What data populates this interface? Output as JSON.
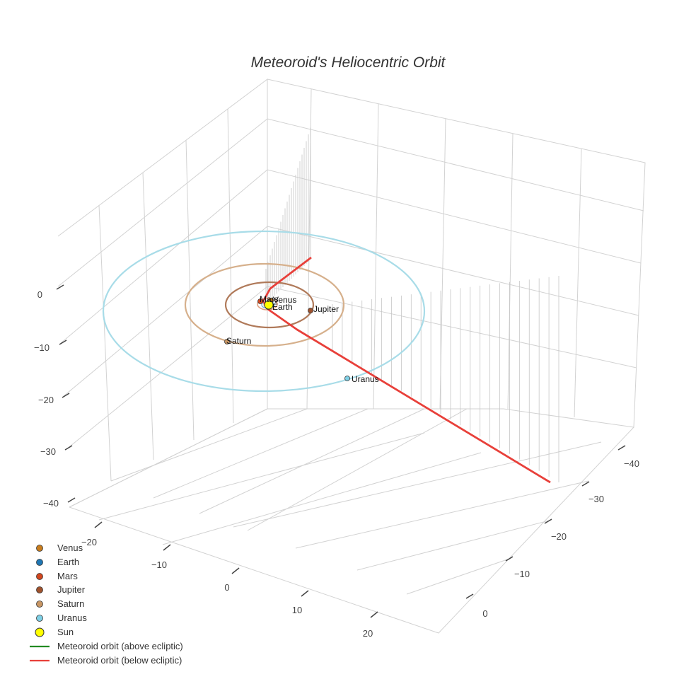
{
  "chart_data": {
    "type": "scatter3d",
    "title": "Meteoroid's Heliocentric Orbit",
    "axes": {
      "x": {
        "ticks": [
          -20,
          -10,
          0,
          10,
          20
        ],
        "labels": [
          "−20",
          "−10",
          "0",
          "10",
          "20"
        ],
        "range": [
          -25,
          25
        ]
      },
      "y": {
        "ticks": [
          -40,
          -30,
          -20,
          -10,
          0
        ],
        "labels": [
          "−40",
          "−30",
          "−20",
          "−10",
          "0"
        ],
        "range": [
          -45,
          5
        ]
      },
      "z": {
        "ticks": [
          0,
          -10,
          -20,
          -30,
          -40
        ],
        "labels": [
          "0",
          "−10",
          "−20",
          "−30",
          "−40"
        ],
        "range": [
          -45,
          15
        ]
      }
    },
    "series": [
      {
        "name": "Venus",
        "kind": "planet",
        "color": "#c87d1e",
        "orbit_radius": 0.72
      },
      {
        "name": "Earth",
        "kind": "planet",
        "color": "#1f77b4",
        "orbit_radius": 1.0
      },
      {
        "name": "Mars",
        "kind": "planet",
        "color": "#d2461e",
        "orbit_radius": 1.52
      },
      {
        "name": "Jupiter",
        "kind": "planet",
        "color": "#a0522d",
        "orbit_radius": 5.2,
        "orbit_color": "#b07a5a"
      },
      {
        "name": "Saturn",
        "kind": "planet",
        "color": "#c89664",
        "orbit_radius": 9.5,
        "orbit_color": "#d6b08c"
      },
      {
        "name": "Uranus",
        "kind": "planet",
        "color": "#7ed0e6",
        "orbit_radius": 19.2,
        "orbit_color": "#a8dce8"
      },
      {
        "name": "Sun",
        "kind": "sun",
        "color": "#ffff00"
      },
      {
        "name": "Meteoroid orbit (above ecliptic)",
        "kind": "line",
        "color": "#228b22"
      },
      {
        "name": "Meteoroid orbit (below ecliptic)",
        "kind": "line",
        "color": "#e8403a"
      }
    ],
    "legend_position": "bottom-left"
  }
}
